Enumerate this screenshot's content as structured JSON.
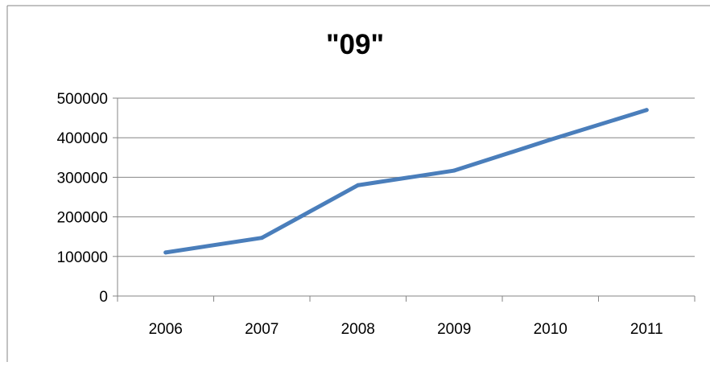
{
  "chart_data": {
    "type": "line",
    "title": "\"09\"",
    "xlabel": "",
    "ylabel": "",
    "categories": [
      "2006",
      "2007",
      "2008",
      "2009",
      "2010",
      "2011"
    ],
    "series": [
      {
        "values": [
          110000,
          147000,
          280000,
          317000,
          395000,
          470000
        ]
      }
    ],
    "ylim": [
      0,
      500000
    ],
    "yticks": [
      0,
      100000,
      200000,
      300000,
      400000,
      500000
    ],
    "grid": true,
    "legend": "none",
    "colors": {
      "line": "#4A7EBB",
      "grid": "#868686",
      "axis": "#868686",
      "text": "#000000"
    }
  }
}
